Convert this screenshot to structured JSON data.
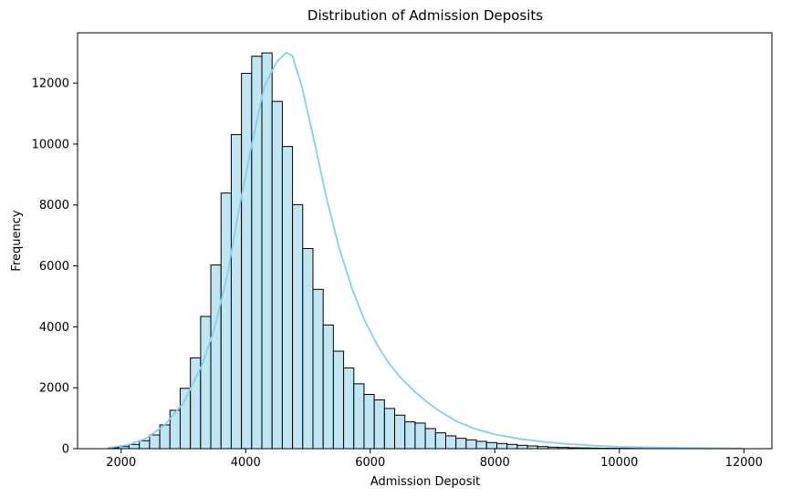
{
  "chart_data": {
    "type": "bar",
    "subtype": "histogram",
    "title": "Distribution of Admission Deposits",
    "xlabel": "Admission Deposit",
    "ylabel": "Frequency",
    "xlim": [
      1300,
      12450
    ],
    "ylim": [
      0,
      13650
    ],
    "bin_edges": [
      1800,
      1964,
      2128,
      2292,
      2456,
      2620,
      2784,
      2948,
      3112,
      3276,
      3440,
      3604,
      3768,
      3932,
      4096,
      4260,
      4424,
      4588,
      4752,
      4916,
      5080,
      5244,
      5408,
      5572,
      5736,
      5900,
      6064,
      6228,
      6392,
      6556,
      6720,
      6884,
      7048,
      7212,
      7376,
      7540,
      7704,
      7868,
      8032,
      8196,
      8360,
      8524,
      8688,
      8852,
      9016,
      9180,
      9344,
      9508,
      9672,
      9836,
      10000,
      10164,
      10328,
      10492,
      10656,
      10820,
      10984,
      11148,
      11312,
      11476,
      11640,
      11804,
      11968
    ],
    "values": [
      30,
      70,
      140,
      260,
      450,
      780,
      1260,
      1980,
      2980,
      4340,
      6030,
      8390,
      10310,
      12320,
      12880,
      12990,
      11400,
      9920,
      8010,
      6570,
      5230,
      4060,
      3200,
      2650,
      2130,
      1780,
      1600,
      1320,
      1100,
      880,
      840,
      660,
      520,
      420,
      340,
      290,
      240,
      200,
      170,
      140,
      110,
      90,
      70,
      50,
      40,
      30,
      25,
      20,
      15,
      12,
      10,
      8,
      7,
      6,
      5,
      5,
      4,
      4,
      3,
      3,
      2,
      2
    ],
    "x_ticks": [
      2000,
      4000,
      6000,
      8000,
      10000,
      12000
    ],
    "y_ticks": [
      0,
      2000,
      4000,
      6000,
      8000,
      10000,
      12000
    ],
    "kde": {
      "x": [
        1800,
        2100,
        2400,
        2700,
        3000,
        3300,
        3500,
        3700,
        3900,
        4100,
        4300,
        4500,
        4650,
        4750,
        4900,
        5100,
        5300,
        5500,
        5700,
        5900,
        6100,
        6300,
        6500,
        6700,
        6900,
        7100,
        7400,
        7700,
        8000,
        8400,
        8800,
        9200,
        9600,
        10000,
        10500,
        11000,
        11500,
        11968
      ],
      "y": [
        30,
        120,
        330,
        780,
        1500,
        2750,
        3950,
        5650,
        7950,
        10000,
        11900,
        12700,
        13000,
        12900,
        11900,
        10100,
        8200,
        6600,
        5300,
        4250,
        3450,
        2800,
        2300,
        1900,
        1550,
        1250,
        880,
        640,
        470,
        320,
        220,
        150,
        100,
        60,
        40,
        25,
        15,
        8
      ]
    },
    "colors": {
      "bar_fill": "#bfe6f2",
      "bar_edge": "#000000",
      "kde_line": "#87ceeb"
    },
    "grid": false,
    "legend": false
  }
}
